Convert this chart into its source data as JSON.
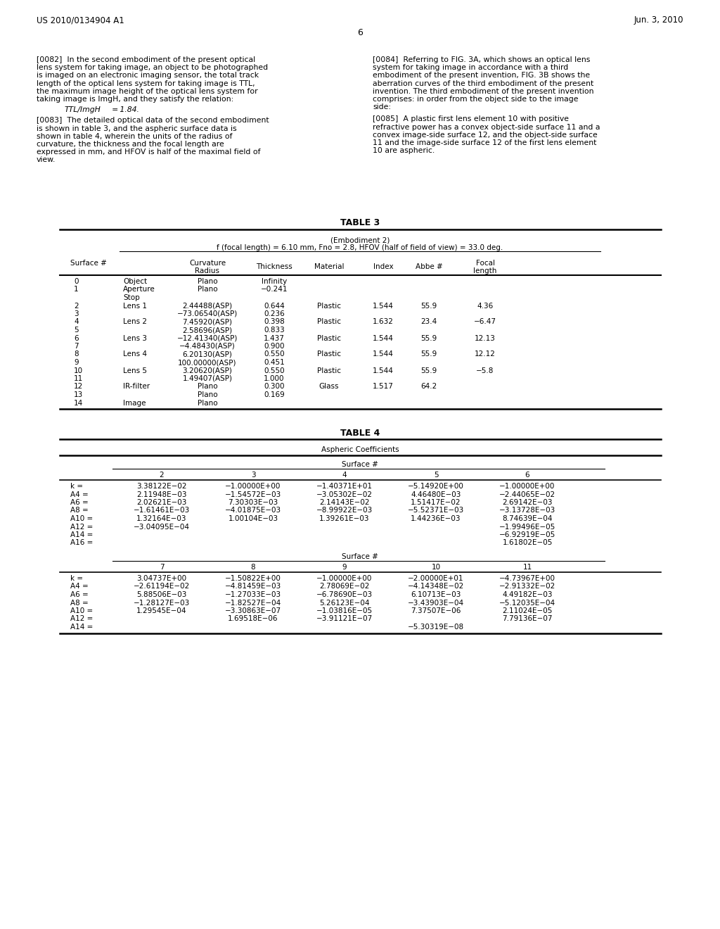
{
  "header_left": "US 2010/0134904 A1",
  "header_right": "Jun. 3, 2010",
  "page_number": "6",
  "bg_color": "#ffffff",
  "text_color": "#000000",
  "col1_paragraphs": [
    "[0082] In the second embodiment of the present optical lens system for taking image, an object to be photographed is imaged on an electronic imaging sensor, the total track length of the optical lens system for taking image is TTL, the maximum image height of the optical lens system for taking image is ImgH, and they satisfy the relation:",
    "TTL/ImgH = 1.84.",
    "[0083] The detailed optical data of the second embodiment is shown in table 3, and the aspheric surface data is shown in table 4, wherein the units of the radius of curvature, the thickness and the focal length are expressed in mm, and HFOV is half of the maximal field of view."
  ],
  "col2_paragraphs": [
    "[0084] Referring to FIG. 3A, which shows an optical lens system for taking image in accordance with a third embodiment of the present invention, FIG. 3B shows the aberration curves of the third embodiment of the present invention. The third embodiment of the present invention comprises: in order from the object side to the image side:",
    "[0085] A plastic first lens element 10 with positive refractive power has a convex object-side surface 11 and a convex image-side surface 12, and the object-side surface 11 and the image-side surface 12 of the first lens element 10 are aspheric."
  ],
  "table3_title": "TABLE 3",
  "table3_subtitle1": "(Embodiment 2)",
  "table3_subtitle2": "f (focal length) = 6.10 mm, Fno = 2.8, HFOV (half of field of view) = 33.0 deg.",
  "table3_col_headers": [
    "Surface #",
    "",
    "Curvature\nRadius",
    "Thickness",
    "Material",
    "Index",
    "Abbe #",
    "Focal\nlength"
  ],
  "table3_rows": [
    [
      "0",
      "Object",
      "Plano",
      "Infinity",
      "",
      "",
      "",
      ""
    ],
    [
      "1",
      "Aperture\nStop",
      "Plano",
      "−0.241",
      "",
      "",
      "",
      ""
    ],
    [
      "2",
      "Lens 1",
      "2.44488(ASP)",
      "0.644",
      "Plastic",
      "1.544",
      "55.9",
      "4.36"
    ],
    [
      "3",
      "",
      "−73.06540(ASP)",
      "0.236",
      "",
      "",
      "",
      ""
    ],
    [
      "4",
      "Lens 2",
      "7.45920(ASP)",
      "0.398",
      "Plastic",
      "1.632",
      "23.4",
      "−6.47"
    ],
    [
      "5",
      "",
      "2.58696(ASP)",
      "0.833",
      "",
      "",
      "",
      ""
    ],
    [
      "6",
      "Lens 3",
      "−12.41340(ASP)",
      "1.437",
      "Plastic",
      "1.544",
      "55.9",
      "12.13"
    ],
    [
      "7",
      "",
      "−4.48430(ASP)",
      "0.900",
      "",
      "",
      "",
      ""
    ],
    [
      "8",
      "Lens 4",
      "6.20130(ASP)",
      "0.550",
      "Plastic",
      "1.544",
      "55.9",
      "12.12"
    ],
    [
      "9",
      "",
      "100.00000(ASP)",
      "0.451",
      "",
      "",
      "",
      ""
    ],
    [
      "10",
      "Lens 5",
      "3.20620(ASP)",
      "0.550",
      "Plastic",
      "1.544",
      "55.9",
      "−5.8"
    ],
    [
      "11",
      "",
      "1.49407(ASP)",
      "1.000",
      "",
      "",
      "",
      ""
    ],
    [
      "12",
      "IR-filter",
      "Plano",
      "0.300",
      "Glass",
      "1.517",
      "64.2",
      ""
    ],
    [
      "13",
      "",
      "Plano",
      "0.169",
      "",
      "",
      "",
      ""
    ],
    [
      "14",
      "Image",
      "Plano",
      "",
      "",
      "",
      "",
      ""
    ]
  ],
  "table4_title": "TABLE 4",
  "table4_subtitle": "Aspheric Coefficients",
  "table4_surface_header": "Surface #",
  "table4_top_cols": [
    "",
    "2",
    "3",
    "4",
    "5",
    "6"
  ],
  "table4_top_rows": [
    [
      "k =",
      "3.38122E−02",
      "−1.00000E+00",
      "−1.40371E+01",
      "−5.14920E+00",
      "−1.00000E+00"
    ],
    [
      "A4 =",
      "2.11948E−03",
      "−1.54572E−03",
      "−3.05302E−02",
      "4.46480E−03",
      "−2.44065E−02"
    ],
    [
      "A6 =",
      "2.02621E−03",
      "7.30303E−03",
      "2.14143E−02",
      "1.51417E−02",
      "2.69142E−03"
    ],
    [
      "A8 =",
      "−1.61461E−03",
      "−4.01875E−03",
      "−8.99922E−03",
      "−5.52371E−03",
      "−3.13728E−03"
    ],
    [
      "A10 =",
      "1.32164E−03",
      "1.00104E−03",
      "1.39261E−03",
      "1.44236E−03",
      "8.74639E−04"
    ],
    [
      "A12 =",
      "−3.04095E−04",
      "",
      "",
      "",
      "−1.99496E−05"
    ],
    [
      "A14 =",
      "",
      "",
      "",
      "",
      "−6.92919E−05"
    ],
    [
      "A16 =",
      "",
      "",
      "",
      "",
      "1.61802E−05"
    ]
  ],
  "table4_bot_cols": [
    "",
    "7",
    "8",
    "9",
    "10",
    "11"
  ],
  "table4_bot_rows": [
    [
      "k =",
      "3.04737E+00",
      "−1.50822E+00",
      "−1.00000E+00",
      "−2.00000E+01",
      "−4.73967E+00"
    ],
    [
      "A4 =",
      "−2.61194E−02",
      "−4.81459E−03",
      "2.78069E−02",
      "−4.14348E−02",
      "−2.91332E−02"
    ],
    [
      "A6 =",
      "5.88506E−03",
      "−1.27033E−03",
      "−6.78690E−03",
      "6.10713E−03",
      "4.49182E−03"
    ],
    [
      "A8 =",
      "−1.28127E−03",
      "−1.82527E−04",
      "5.26123E−04",
      "−3.43903E−04",
      "−5.12035E−04"
    ],
    [
      "A10 =",
      "1.29545E−04",
      "−3.30863E−07",
      "−1.03816E−05",
      "7.37507E−06",
      "2.11024E−05"
    ],
    [
      "A12 =",
      "",
      "1.69518E−06",
      "−3.91121E−07",
      "",
      "7.79136E−07"
    ],
    [
      "A14 =",
      "",
      "",
      "",
      "−5.30319E−08",
      ""
    ]
  ]
}
